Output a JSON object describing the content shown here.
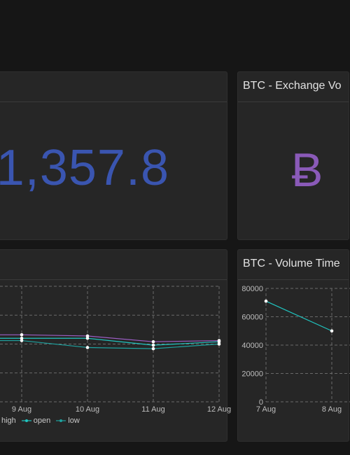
{
  "price_panel": {
    "title": "",
    "value": "1,357.8",
    "value_color": "#3a55b0"
  },
  "exchange_panel": {
    "title": "BTC - Exchange Vo",
    "icon": "bitcoin-icon",
    "glyph": "Ƀ",
    "glyph_color": "#8a5ab8"
  },
  "ohlc_panel": {
    "title": "",
    "legend": [
      {
        "label": "high",
        "color": "#9d5fc7"
      },
      {
        "label": "open",
        "color": "#20c5c0"
      },
      {
        "label": "low",
        "color": "#1ea3a0"
      }
    ]
  },
  "volume_panel": {
    "title": "BTC - Volume Time"
  },
  "chart_data": [
    {
      "type": "line",
      "title": "",
      "x": [
        "9 Aug",
        "10 Aug",
        "11 Aug",
        "12 Aug"
      ],
      "x_extra_left": 8.0,
      "series": [
        {
          "name": "high",
          "values": [
            0.58,
            0.57,
            0.52,
            0.53
          ]
        },
        {
          "name": "open",
          "values": [
            0.55,
            0.55,
            0.49,
            0.52
          ]
        },
        {
          "name": "low",
          "values": [
            0.53,
            0.47,
            0.46,
            0.5
          ]
        }
      ],
      "grid": true
    },
    {
      "type": "line",
      "title": "",
      "categories": [
        "7 Aug",
        "8 Aug"
      ],
      "series": [
        {
          "name": "",
          "values": [
            71000,
            50000
          ]
        }
      ],
      "y_ticks": [
        "0",
        "20000",
        "40000",
        "60000",
        "80000"
      ],
      "ylim": [
        0,
        80000
      ],
      "grid": true
    }
  ]
}
